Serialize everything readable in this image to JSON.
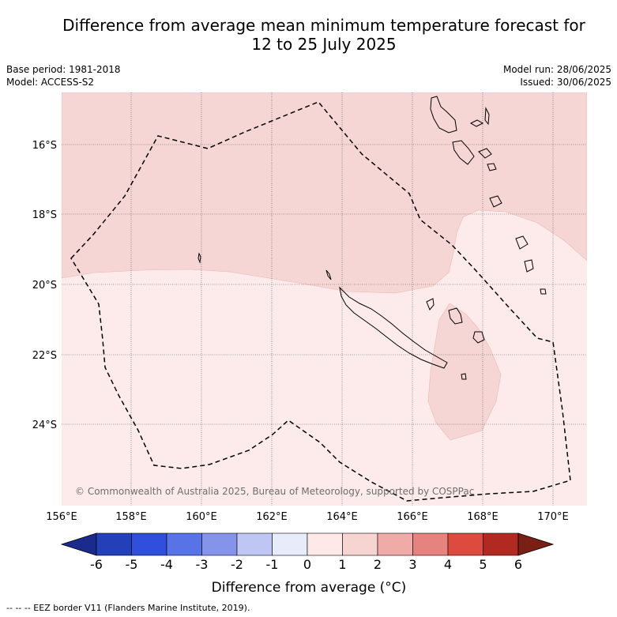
{
  "title": {
    "line1": "Difference from average mean minimum temperature forecast for",
    "line2": "12 to 25 July 2025"
  },
  "meta": {
    "base_period": "Base period: 1981-2018",
    "model": "Model: ACCESS-S2",
    "model_run": "Model run: 28/06/2025",
    "issued": "Issued: 30/06/2025"
  },
  "map": {
    "lat_labels": [
      "16°S",
      "18°S",
      "20°S",
      "22°S",
      "24°S"
    ],
    "lon_labels": [
      "156°E",
      "158°E",
      "160°E",
      "162°E",
      "164°E",
      "166°E",
      "168°E",
      "170°E"
    ],
    "copyright": "© Commonwealth of Australia 2025, Bureau of Meteorology, supported by COSPPac",
    "colors": {
      "anomaly_0_1": "#fcebea",
      "anomaly_1_2": "#f5d6d4",
      "coast": "#000000",
      "eez_border": "#000000"
    }
  },
  "colorbar": {
    "ticks": [
      "-6",
      "-5",
      "-4",
      "-3",
      "-2",
      "-1",
      "0",
      "1",
      "2",
      "3",
      "4",
      "5",
      "6"
    ],
    "colors": [
      "#1b2b8c",
      "#2340b8",
      "#2f4fdc",
      "#5873e6",
      "#8594ea",
      "#bfc6f4",
      "#e8ebfa",
      "#fdeae8",
      "#f6d4d2",
      "#f0aba8",
      "#e6837e",
      "#dc4b3e",
      "#b02a22",
      "#7a1f14"
    ],
    "label": "Difference from average (°C)"
  },
  "footer": "--  --  -- EEZ border V11 (Flanders Marine Institute, 2019)."
}
